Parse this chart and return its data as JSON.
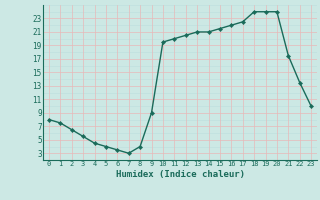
{
  "x": [
    0,
    1,
    2,
    3,
    4,
    5,
    6,
    7,
    8,
    9,
    10,
    11,
    12,
    13,
    14,
    15,
    16,
    17,
    18,
    19,
    20,
    21,
    22,
    23
  ],
  "y": [
    8,
    7.5,
    6.5,
    5.5,
    4.5,
    4,
    3.5,
    3,
    4,
    9,
    19.5,
    20,
    20.5,
    21,
    21,
    21.5,
    22,
    22.5,
    24,
    24,
    24,
    17.5,
    13.5,
    10
  ],
  "xlabel": "Humidex (Indice chaleur)",
  "xlim": [
    -0.5,
    23.5
  ],
  "ylim": [
    2,
    25
  ],
  "yticks": [
    3,
    5,
    7,
    9,
    11,
    13,
    15,
    17,
    19,
    21,
    23
  ],
  "xticks": [
    0,
    1,
    2,
    3,
    4,
    5,
    6,
    7,
    8,
    9,
    10,
    11,
    12,
    13,
    14,
    15,
    16,
    17,
    18,
    19,
    20,
    21,
    22,
    23
  ],
  "line_color": "#1a6b5a",
  "bg_color": "#cce8e4",
  "grid_color_major": "#e8b8b8",
  "grid_color_minor": "#bcdede"
}
